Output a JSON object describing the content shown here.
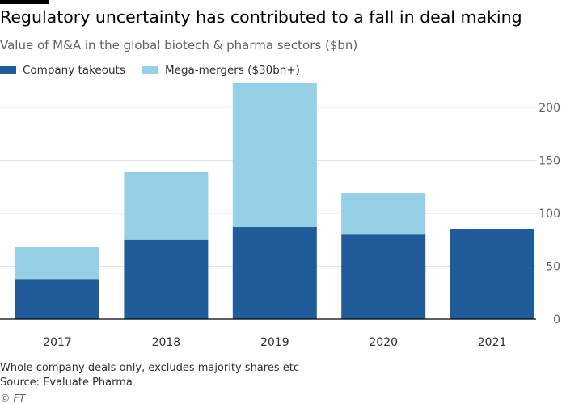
{
  "chart_data": {
    "type": "bar",
    "stacked": true,
    "title": "Regulatory uncertainty has contributed to a fall in deal making",
    "subtitle": "Value of M&A in the global biotech & pharma sectors ($bn)",
    "categories": [
      "2017",
      "2018",
      "2019",
      "2020",
      "2021"
    ],
    "series": [
      {
        "name": "Company takeouts",
        "color": "#1f5c99",
        "values": [
          38,
          75,
          87,
          80,
          85
        ]
      },
      {
        "name": "Mega-mergers ($30bn+)",
        "color": "#96cfe6",
        "values": [
          30,
          64,
          136,
          39,
          0
        ]
      }
    ],
    "ylim": [
      0,
      225
    ],
    "yticks": [
      0,
      50,
      100,
      150,
      200
    ],
    "grid": true,
    "legend": "top-left",
    "y_axis_side": "right"
  },
  "notes": {
    "footnote": "Whole company deals only, excludes majority shares etc",
    "source": "Source: Evaluate Pharma",
    "copyright": "© FT"
  }
}
